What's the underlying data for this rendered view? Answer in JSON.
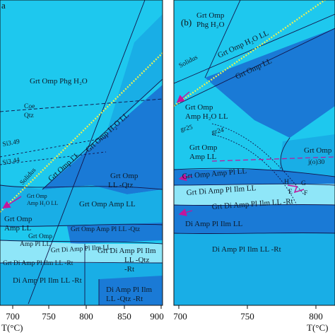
{
  "left_panel": {
    "panel_letter": "a",
    "fields": {
      "grt_omp_phg_h2o": "Grt Omp Phg H₂O",
      "coe": "Coe",
      "qtz": "Qtz",
      "si349": "Si3.49",
      "si344": "Si3.44",
      "solidus": "Solidus",
      "grt_omp_h2o_ll": "Grt Omp H₂O LL",
      "grt_omp_ll": "Grt Omp LL",
      "grt_omp_ll_qtz": "Grt Omp",
      "grt_omp_ll_qtz_2": "LL -Qtz",
      "grt_omp_amp_h2o_ll": "Grt Omp",
      "grt_omp_amp_h2o_ll_2": "Amp H₂O LL",
      "grt_omp_amp_ll": "Grt Omp",
      "grt_omp_amp_ll_2": "Amp LL",
      "grt_omp_amp_ll_qtz": "Grt Omp Amp LL",
      "grt_omp_amp_pl_ll_qtz": "Grt Omp Amp Pl LL -Qtz",
      "grt_omp_amp_pl_ll": "Grt Omp",
      "grt_omp_amp_pl_ll_2": "Amp Pl LL",
      "grt_di_amp_pl_ilm_ll": "Grt Di Amp Pl Ilm LL",
      "grt_di_amp_pl_ilm_ll_qtz": "Grt Di Amp Pl Ilm",
      "grt_di_amp_pl_ilm_ll_qtz_2": "LL -Qtz",
      "grt_di_amp_pl_ilm_ll_qtz_3": "-Rt",
      "grt_di_amp_pl_ilm_ll_rt": "Grt Di Amp Pl Ilm LL -Rt",
      "di_amp_pl_ilm_ll_rt": "Di Amp Pl Ilm LL -Rt",
      "di_amp_pl_ilm_ll_qtz_rt": "Di Amp Pl Ilm",
      "di_amp_pl_ilm_ll_qtz_rt_2": "LL -Qtz -Rt"
    },
    "x_ticks": [
      "700",
      "750",
      "800",
      "850",
      "900"
    ],
    "x_axis_label": "T(°C)"
  },
  "right_panel": {
    "panel_letter": "(b)",
    "fields": {
      "grt_omp_phg_h2o": "Grt Omp",
      "grt_omp_phg_h2o_2": "Phg H₂O",
      "grt_omp_h2o_ll": "Grt Omp H₂O LL",
      "grt_omp_ll": "Grt Omp LL",
      "solidus": "Solidus",
      "grt_omp_amp_h2o_ll": "Grt Omp",
      "grt_omp_amp_h2o_ll_2": "Amp H₂O LL",
      "gr25": "gr25",
      "gr24": "gr24",
      "grt_omp_amp_ll": "Grt Omp",
      "grt_omp_amp_ll_2": "Amp LL",
      "grt_omp_right": "Grt Omp",
      "j30": "j(o)30",
      "grt_omp_amp_pl_ll": "Grt Omp Amp Pl LL",
      "grt_di_amp_pl_ilm_ll": "Grt Di Amp Pl Ilm LL",
      "grt_di_amp_pl_ilm_ll_rt": "Grt Di Amp Pl Ilm LL -Rt",
      "di_amp_pl_ilm_ll": "Di Amp Pl Ilm LL",
      "di_amp_pl_ilm_ll_rt": "Di Amp Pl Ilm LL -Rt",
      "point_h": "H",
      "point_e": "E",
      "point_g": "G",
      "point_f": "F"
    },
    "x_ticks": [
      "700",
      "750",
      "800"
    ],
    "x_axis_label": "T(°C)"
  },
  "colors": {
    "light": "#1ec8ee",
    "mid": "#19aee6",
    "deep": "#1a7ad6",
    "pale": "#8fe6f8",
    "line": "#13154a",
    "solidus": "#e2f05a",
    "arrow": "#c2159c"
  }
}
